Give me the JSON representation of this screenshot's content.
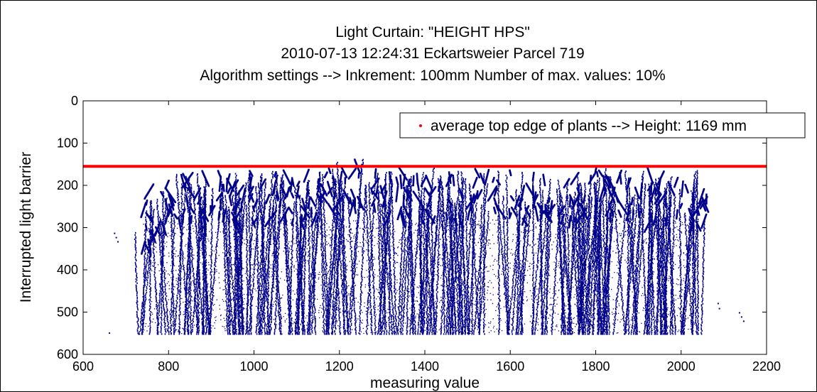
{
  "chart_data": {
    "type": "scatter",
    "title_lines": [
      "Light Curtain: \"HEIGHT HPS\"",
      "2010-07-13 12:24:31 Eckartsweier Parcel 719",
      "Algorithm settings --> Inkrement: 100mm  Number of max. values: 10%"
    ],
    "xlabel": "measuring value",
    "ylabel": "Interrupted light barrier",
    "xlim": [
      600,
      2200
    ],
    "ylim": [
      0,
      600
    ],
    "y_reversed": true,
    "xticks": [
      600,
      800,
      1000,
      1200,
      1400,
      1600,
      1800,
      2000,
      2200
    ],
    "yticks": [
      0,
      100,
      200,
      300,
      400,
      500,
      600
    ],
    "grid": false,
    "legend_position": "top-right",
    "legend_label": "average top edge of plants --> Height: 1169 mm",
    "height_line_y": 155,
    "colors": {
      "plant_points": "#00008b",
      "height_line": "#ff0000"
    },
    "plant_profile": {
      "x_range": [
        720,
        2060
      ],
      "bottom_y": 550,
      "top_edge_x": [
        720,
        760,
        800,
        850,
        900,
        950,
        1000,
        1050,
        1100,
        1150,
        1200,
        1230,
        1250,
        1270,
        1300,
        1350,
        1400,
        1450,
        1500,
        1550,
        1600,
        1650,
        1700,
        1750,
        1800,
        1850,
        1880,
        1920,
        1960,
        2000,
        2040,
        2060
      ],
      "top_edge_y": [
        260,
        190,
        175,
        165,
        160,
        165,
        158,
        160,
        162,
        155,
        150,
        125,
        118,
        125,
        140,
        150,
        158,
        160,
        160,
        155,
        160,
        165,
        170,
        160,
        155,
        145,
        140,
        155,
        165,
        160,
        170,
        185
      ]
    },
    "outliers": [
      {
        "x": 660,
        "y": 548
      },
      {
        "x": 672,
        "y": 312
      },
      {
        "x": 676,
        "y": 322
      },
      {
        "x": 680,
        "y": 332
      },
      {
        "x": 2085,
        "y": 478
      },
      {
        "x": 2088,
        "y": 490
      },
      {
        "x": 2135,
        "y": 500
      },
      {
        "x": 2140,
        "y": 510
      },
      {
        "x": 2145,
        "y": 520
      }
    ]
  }
}
